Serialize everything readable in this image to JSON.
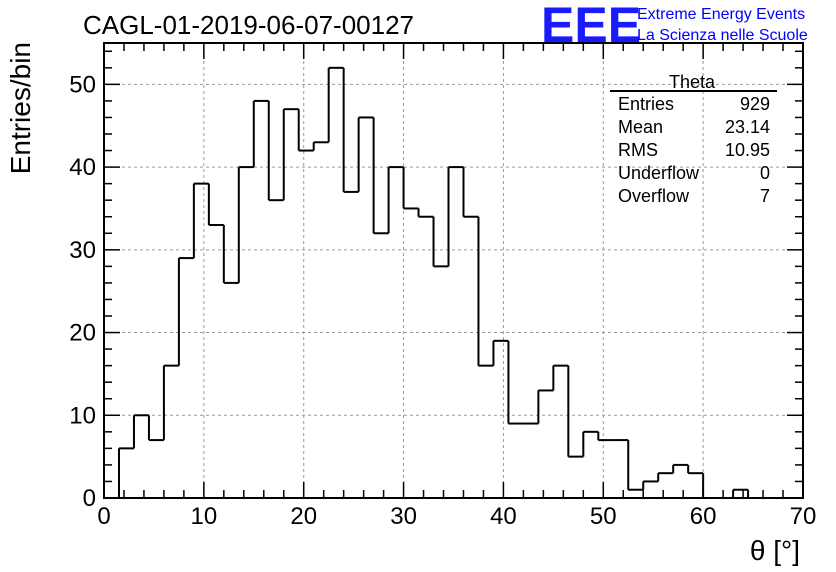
{
  "chart_data": {
    "type": "histogram",
    "title": "CAGL-01-2019-06-07-00127",
    "xlabel": "θ [°]",
    "ylabel": "Entries/bin",
    "xlim": [
      0,
      70
    ],
    "ylim": [
      0,
      55
    ],
    "grid": true,
    "bin_width": 1.5,
    "bin_start": 0,
    "x_ticks": [
      "0",
      "10",
      "20",
      "30",
      "40",
      "50",
      "60",
      "70"
    ],
    "y_ticks": [
      "0",
      "10",
      "20",
      "30",
      "40",
      "50"
    ],
    "values": [
      0,
      6,
      10,
      7,
      16,
      29,
      38,
      33,
      26,
      40,
      48,
      36,
      47,
      42,
      43,
      52,
      37,
      46,
      32,
      40,
      35,
      34,
      28,
      40,
      34,
      16,
      19,
      9,
      9,
      13,
      16,
      5,
      8,
      7,
      7,
      1,
      2,
      3,
      4,
      3,
      0,
      0,
      1,
      0,
      0,
      0,
      0
    ],
    "color": "#000000"
  },
  "stats_box": {
    "title": "Theta",
    "rows": [
      {
        "label": "Entries",
        "value": "929"
      },
      {
        "label": "Mean",
        "value": "23.14"
      },
      {
        "label": "RMS",
        "value": "10.95"
      },
      {
        "label": "Underflow",
        "value": "0"
      },
      {
        "label": "Overflow",
        "value": "7"
      }
    ]
  },
  "logo": {
    "mark": "EEE",
    "line1": "Extreme Energy Events",
    "line2": "La Scienza nelle Scuole",
    "color": "#0000ff"
  }
}
